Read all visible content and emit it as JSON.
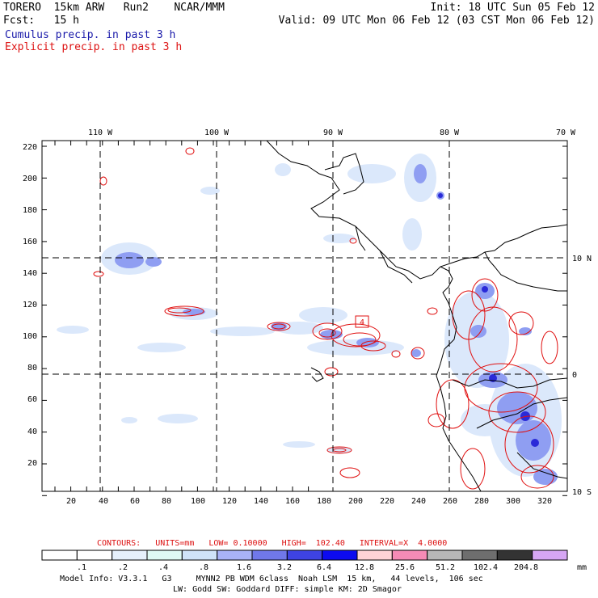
{
  "header": {
    "left_line1": "TORERO  15km ARW   Run2    NCAR/MMM",
    "left_line2": "Fcst:   15 h",
    "right_line1": "Init: 18 UTC Sun 05 Feb 12",
    "right_line2": "Valid: 09 UTC Mon 06 Feb 12 (03 CST Mon 06 Feb 12)",
    "legend_blue": "Cumulus precip. in past 3 h",
    "legend_red": "Explicit precip. in past 3 h"
  },
  "map": {
    "top_lon_labels": [
      "110 W",
      "100 W",
      "90 W",
      "80 W",
      "70 W"
    ],
    "right_lat_labels": [
      "10 N",
      "0",
      "10 S"
    ],
    "y_grid_labels": [
      "220",
      "200",
      "180",
      "160",
      "140",
      "120",
      "100",
      "80",
      "60",
      "40",
      "20"
    ],
    "x_grid_labels": [
      "20",
      "40",
      "60",
      "80",
      "100",
      "120",
      "140",
      "160",
      "180",
      "200",
      "220",
      "240",
      "260",
      "280",
      "300",
      "320"
    ],
    "colors": {
      "land_outline": "#000000",
      "cumulus_light": "#dbe8fb",
      "cumulus_mid": "#8f9ef2",
      "cumulus_dark": "#2a2ad8",
      "explicit_contour": "#e01010"
    },
    "contour_box_label": "4"
  },
  "contours_info": {
    "label": "CONTOURS:",
    "units": "UNITS=mm",
    "low": "LOW= 0.10000",
    "high": "HIGH=  102.40",
    "interval": "INTERVAL=X  4.0000"
  },
  "colorbar": {
    "unit": "mm",
    "labels": [
      ".1",
      ".2",
      ".4",
      ".8",
      "1.6",
      "3.2",
      "6.4",
      "12.8",
      "25.6",
      "51.2",
      "102.4",
      "204.8"
    ],
    "colors": [
      "#ffffff",
      "#ffffff",
      "#e6f0fc",
      "#dff9f5",
      "#cfe3f8",
      "#a8b3f7",
      "#7078ea",
      "#3e43e3",
      "#0d0bf0",
      "#ffd3d6",
      "#f58bb6",
      "#b8b8b8",
      "#6e6e6e",
      "#333333",
      "#d6a6f4"
    ]
  },
  "footer": {
    "line1": "Model Info: V3.3.1   G3     MYNN2 PB WDM 6class  Noah LSM  15 km,   44 levels,  106 sec",
    "line2": "LW: Godd SW: Goddard DIFF: simple KM: 2D Smagor"
  }
}
